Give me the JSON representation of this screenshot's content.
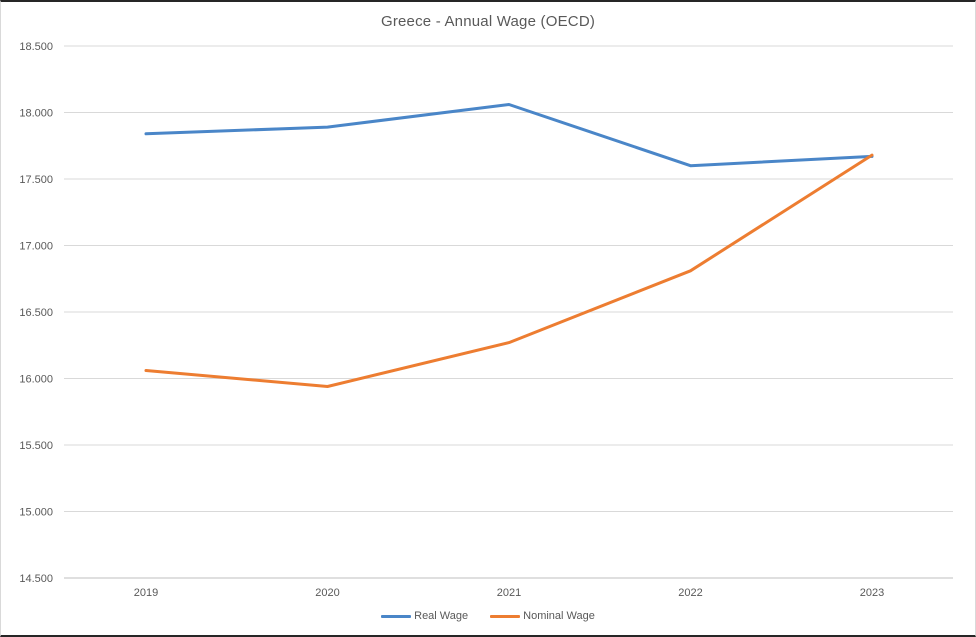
{
  "page": {
    "title": "Greece - Annual Wage (OECD)"
  },
  "chart_data": {
    "type": "line",
    "title": "Greece - Annual Wage (OECD)",
    "categories": [
      "2019",
      "2020",
      "2021",
      "2022",
      "2023"
    ],
    "series": [
      {
        "name": "Real Wage",
        "color": "#4A86C8",
        "values": [
          17840,
          17890,
          18060,
          17600,
          17670
        ]
      },
      {
        "name": "Nominal Wage",
        "color": "#ED7D31",
        "values": [
          16060,
          15940,
          16270,
          16810,
          17680
        ]
      }
    ],
    "xlabel": "",
    "ylabel": "",
    "ylim": [
      14500,
      18500
    ],
    "ytick_step": 500,
    "ytick_labels": [
      "14.500",
      "15.000",
      "15.500",
      "16.000",
      "16.500",
      "17.000",
      "17.500",
      "18.000",
      "18.500"
    ],
    "number_format": "thousands separated by dot",
    "grid": true,
    "legend_position": "bottom"
  },
  "colors": {
    "grid": "#D9D9D9",
    "axis_line": "#BFBFBF",
    "text": "#595959",
    "background": "#FFFFFF"
  }
}
